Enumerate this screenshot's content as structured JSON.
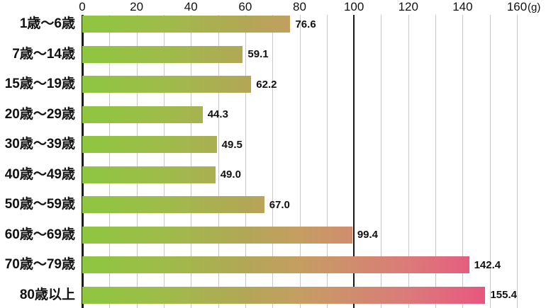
{
  "chart_data": {
    "type": "bar",
    "orientation": "horizontal",
    "title": "",
    "unit": "(g)",
    "categories": [
      "1歳〜6歳",
      "7歳〜14歳",
      "15歳〜19歳",
      "20歳〜29歳",
      "30歳〜39歳",
      "40歳〜49歳",
      "50歳〜59歳",
      "60歳〜69歳",
      "70歳〜79歳",
      "80歳以上"
    ],
    "values": [
      76.6,
      59.1,
      62.2,
      44.3,
      49.5,
      49.0,
      67.0,
      99.4,
      142.4,
      155.4
    ],
    "value_labels": [
      "76.6",
      "59.1",
      "62.2",
      "44.3",
      "49.5",
      "49.0",
      "67.0",
      "99.4",
      "142.4",
      "155.4"
    ],
    "xlim": [
      0,
      160
    ],
    "x_ticks": [
      0,
      20,
      40,
      60,
      80,
      100,
      120,
      140,
      160
    ],
    "grid_step": 10,
    "reference_line_x": 100,
    "grid_on": true,
    "legend": null,
    "colors": {
      "background": "#ffffff",
      "grid": "#c9c9c9",
      "axis": "#1a1a1a",
      "text": "#111111",
      "gradient_stops": [
        {
          "at": 0,
          "color": "#8dc63f"
        },
        {
          "at": 30,
          "color": "#9ebc49"
        },
        {
          "at": 60,
          "color": "#b2a756"
        },
        {
          "at": 80,
          "color": "#c59e62"
        },
        {
          "at": 100,
          "color": "#d08c6e"
        },
        {
          "at": 120,
          "color": "#db7a79"
        },
        {
          "at": 140,
          "color": "#e4617e"
        },
        {
          "at": 160,
          "color": "#e8487c"
        }
      ]
    }
  }
}
